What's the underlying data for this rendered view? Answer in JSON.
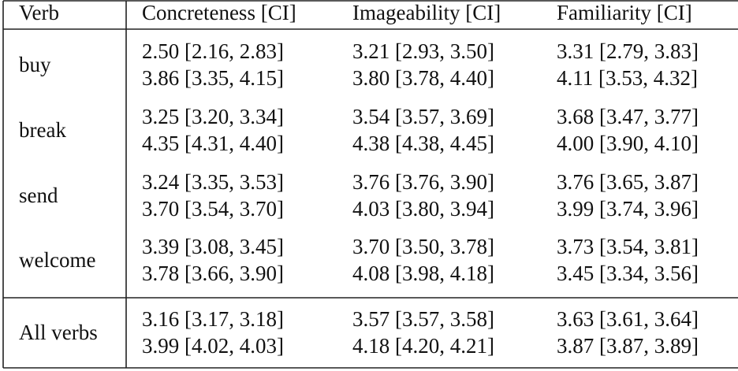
{
  "header": [
    "Verb",
    "Concreteness [CI]",
    "Imageability [CI]",
    "Familiarity [CI]"
  ],
  "rows": [
    {
      "verb": "buy",
      "cells": [
        [
          "2.50 [2.16, 2.83]",
          "3.86 [3.35, 4.15]"
        ],
        [
          "3.21 [2.93, 3.50]",
          "3.80 [3.78, 4.40]"
        ],
        [
          "3.31 [2.79, 3.83]",
          "4.11 [3.53, 4.32]"
        ]
      ]
    },
    {
      "verb": "break",
      "cells": [
        [
          "3.25 [3.20, 3.34]",
          "4.35 [4.31, 4.40]"
        ],
        [
          "3.54 [3.57, 3.69]",
          "4.38 [4.38, 4.45]"
        ],
        [
          "3.68 [3.47, 3.77]",
          "4.00 [3.90, 4.10]"
        ]
      ]
    },
    {
      "verb": "send",
      "cells": [
        [
          "3.24 [3.35, 3.53]",
          "3.70 [3.54, 3.70]"
        ],
        [
          "3.76 [3.76, 3.90]",
          "4.03 [3.80, 3.94]"
        ],
        [
          "3.76 [3.65, 3.87]",
          "3.99 [3.74, 3.96]"
        ]
      ]
    },
    {
      "verb": "welcome",
      "cells": [
        [
          "3.39 [3.08, 3.45]",
          "3.78 [3.66, 3.90]"
        ],
        [
          "3.70 [3.50, 3.78]",
          "4.08 [3.98, 4.18]"
        ],
        [
          "3.73 [3.54, 3.81]",
          "3.45 [3.34, 3.56]"
        ]
      ]
    },
    {
      "verb": "All verbs",
      "cells": [
        [
          "3.16 [3.17, 3.18]",
          "3.99 [4.02, 4.03]"
        ],
        [
          "3.57 [3.57, 3.58]",
          "4.18 [4.20, 4.21]"
        ],
        [
          "3.63 [3.61, 3.64]",
          "3.87 [3.87, 3.89]"
        ]
      ]
    }
  ]
}
